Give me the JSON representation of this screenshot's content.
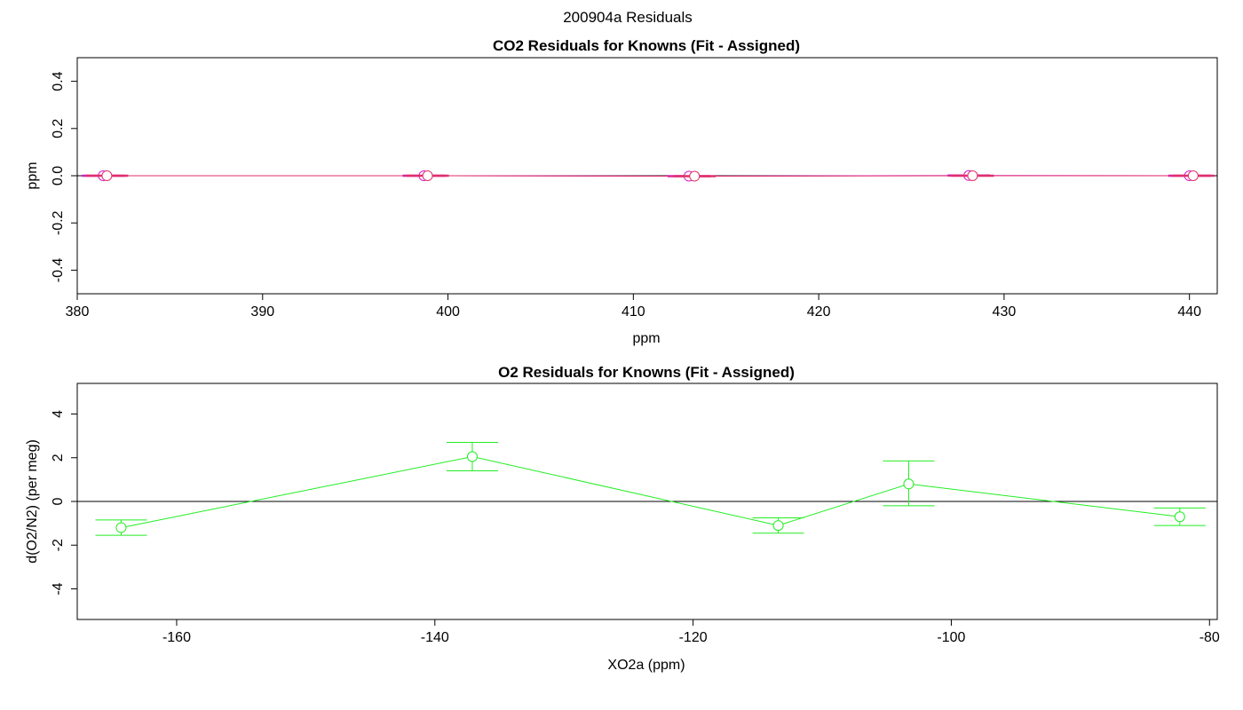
{
  "figure_title": "200904a  Residuals",
  "chart_data": [
    {
      "type": "line",
      "title": "CO2 Residuals for Knowns (Fit - Assigned)",
      "xlabel": "ppm",
      "ylabel": "ppm",
      "xlim": [
        380,
        441.5
      ],
      "ylim": [
        -0.5,
        0.5
      ],
      "xticks": [
        380,
        390,
        400,
        410,
        420,
        430,
        440
      ],
      "yticks": [
        -0.4,
        -0.2,
        0.0,
        0.2,
        0.4
      ],
      "xtick_labels": [
        "380",
        "390",
        "400",
        "410",
        "420",
        "430",
        "440"
      ],
      "ytick_labels": [
        "-0.4",
        "-0.2",
        "0.0",
        "0.2",
        "0.4"
      ],
      "zero_line": true,
      "grid": false,
      "series": [
        {
          "color": "#d01cd0",
          "x": [
            381.4,
            398.7,
            413.0,
            428.1,
            440.0
          ],
          "y": [
            0.0,
            0.0,
            -0.002,
            0.001,
            0.0
          ],
          "err": [
            0.004,
            0.003,
            0.006,
            0.006,
            0.004
          ]
        },
        {
          "color": "#e0306a",
          "x": [
            381.6,
            398.9,
            413.3,
            428.3,
            440.2
          ],
          "y": [
            0.0,
            0.0,
            -0.002,
            0.0,
            0.0
          ],
          "err": [
            0.003,
            0.003,
            0.005,
            0.005,
            0.003
          ]
        }
      ]
    },
    {
      "type": "line",
      "title": "O2 Residuals for Knowns (Fit - Assigned)",
      "xlabel": "XO2a (ppm)",
      "ylabel": "d(O2/N2) (per meg)",
      "xlim": [
        -167.7,
        -79.4
      ],
      "ylim": [
        -5.4,
        5.4
      ],
      "xticks": [
        -160,
        -140,
        -120,
        -100,
        -80
      ],
      "yticks": [
        -4,
        -2,
        0,
        2,
        4
      ],
      "xtick_labels": [
        "-160",
        "-140",
        "-120",
        "-100",
        "-80"
      ],
      "ytick_labels": [
        "-4",
        "-2",
        "0",
        "2",
        "4"
      ],
      "zero_line": true,
      "grid": false,
      "series": [
        {
          "color": "#22ee22",
          "x": [
            -164.3,
            -137.1,
            -113.4,
            -103.3,
            -82.3
          ],
          "y": [
            -1.2,
            2.05,
            -1.1,
            0.8,
            -0.7
          ],
          "err_low": [
            0.35,
            0.65,
            0.35,
            1.0,
            0.4
          ],
          "err_high": [
            0.35,
            0.65,
            0.35,
            1.05,
            0.4
          ]
        }
      ]
    }
  ]
}
